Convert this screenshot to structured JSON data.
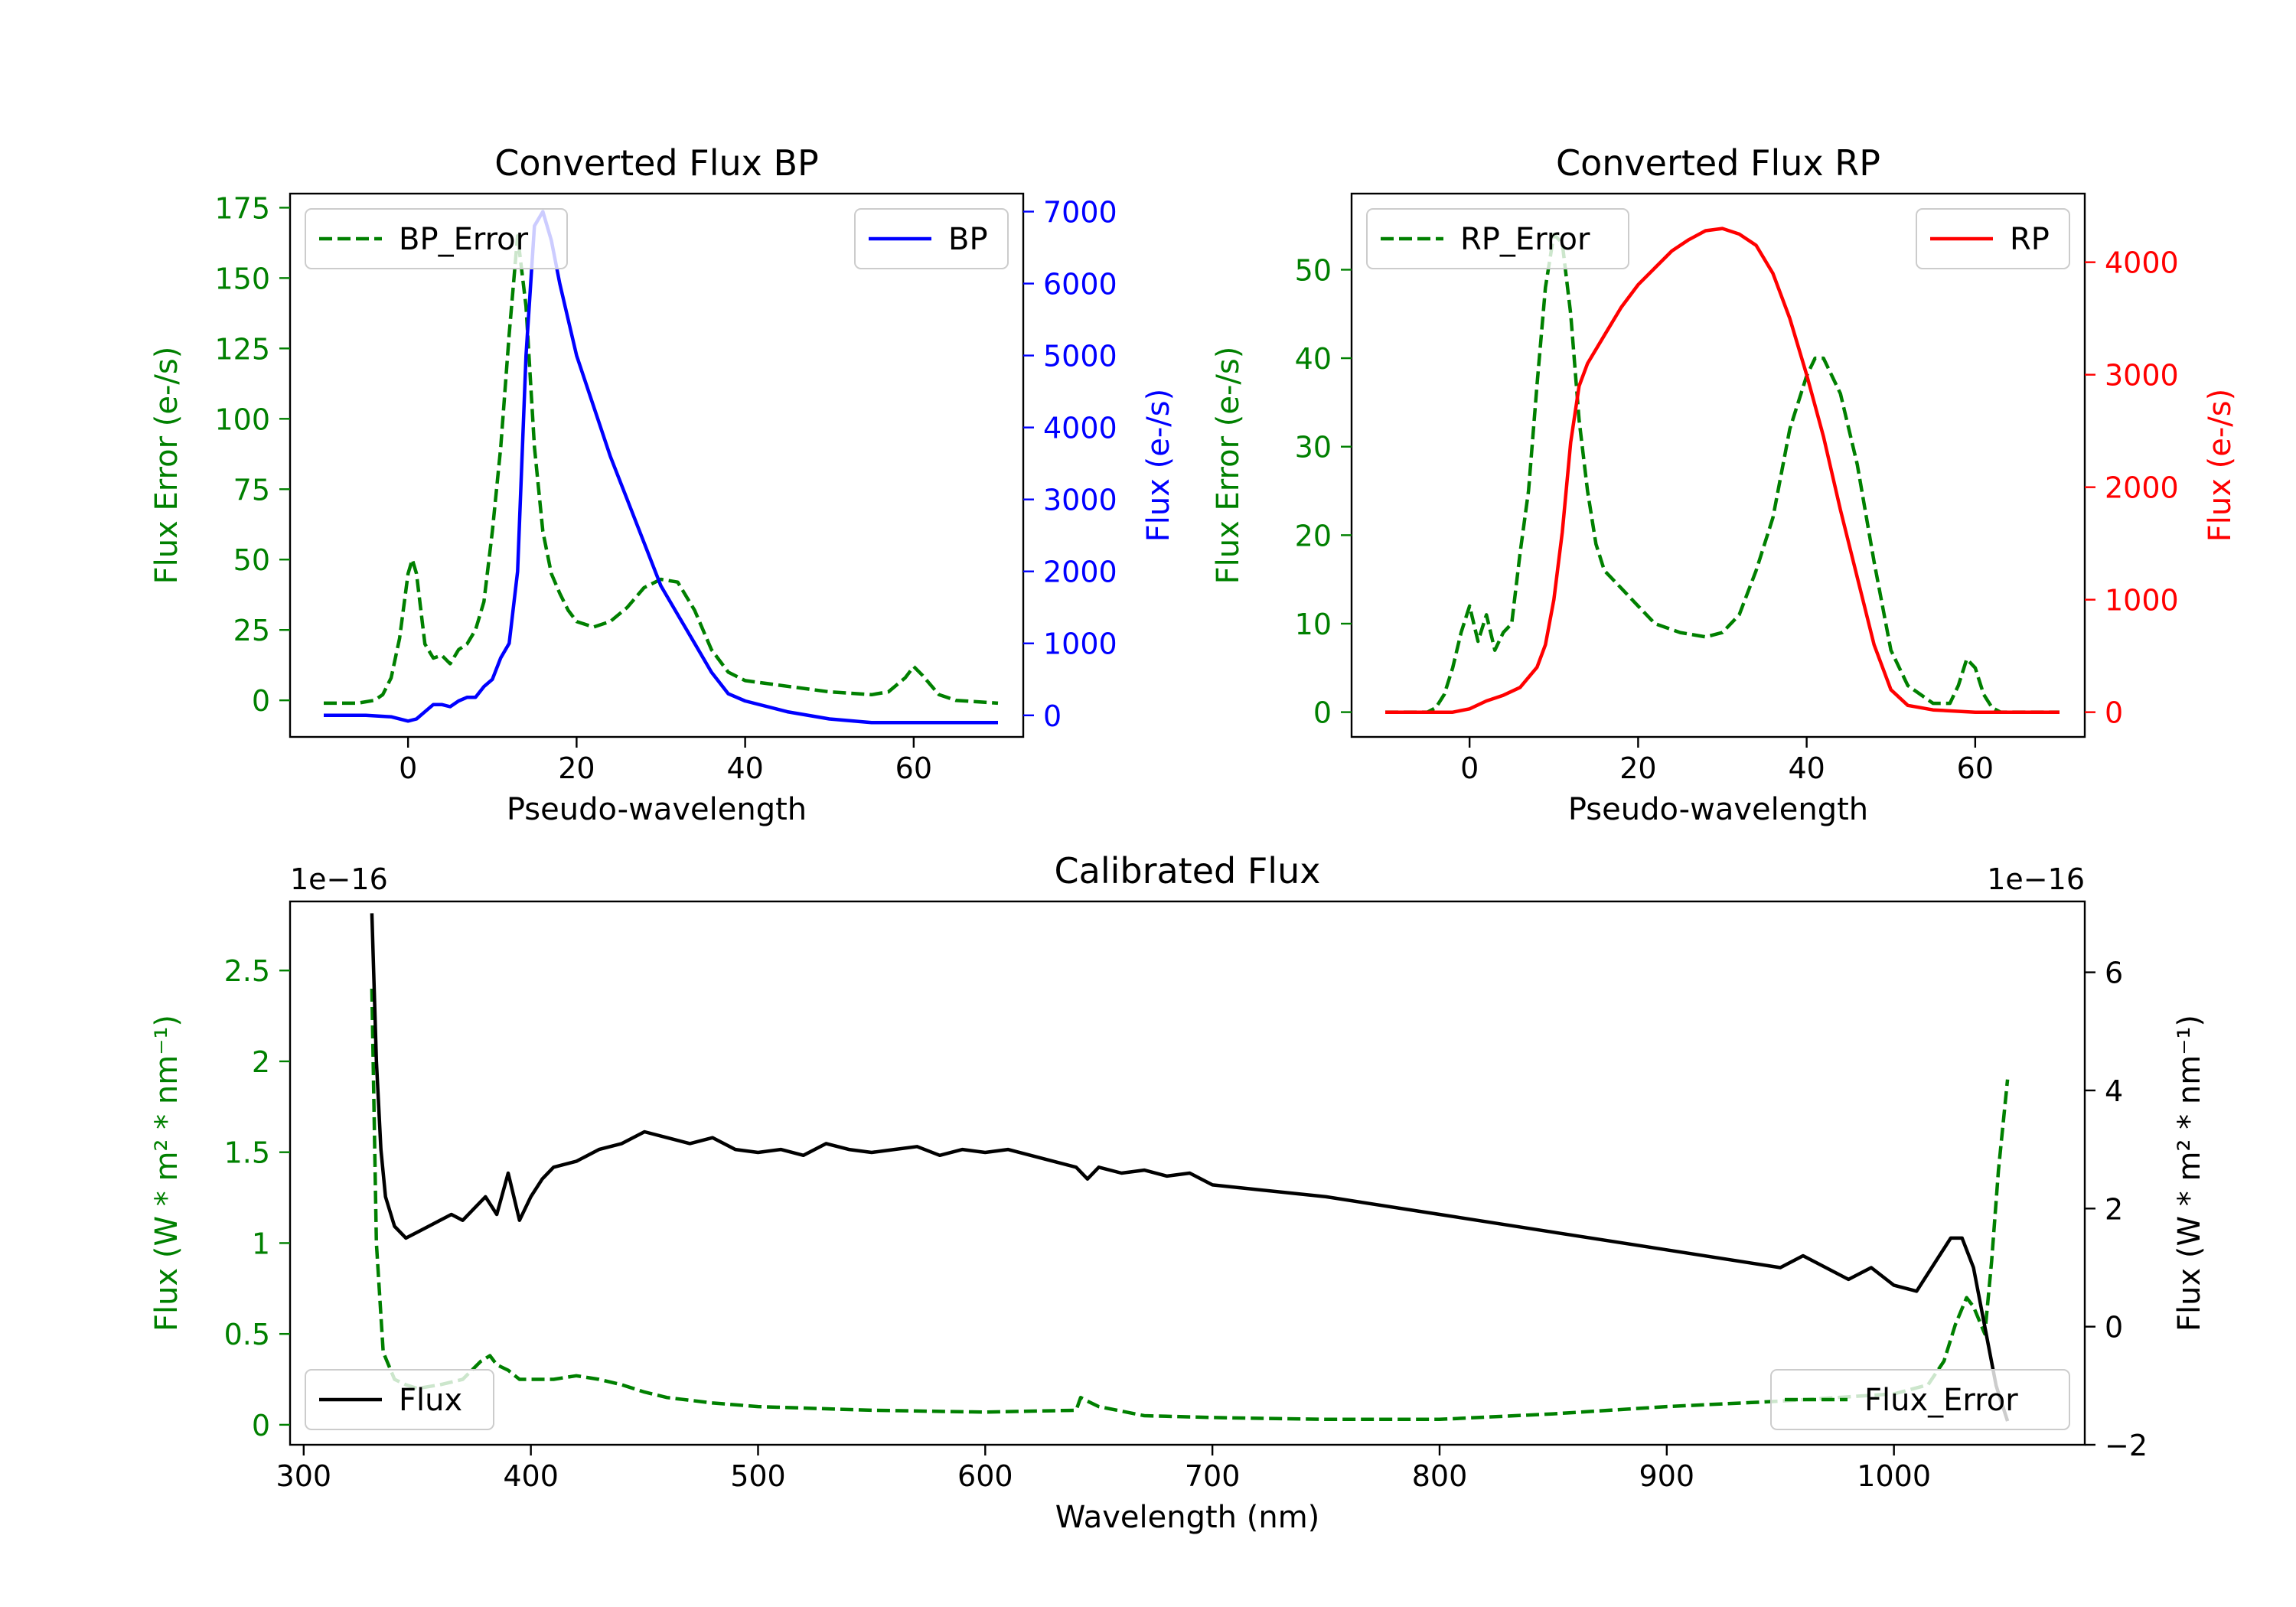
{
  "colors": {
    "error": "#008000",
    "bp": "#0000ff",
    "rp": "#ff0000",
    "flux": "#000000",
    "axis": "#000000"
  },
  "chart_data": [
    {
      "id": "bp",
      "type": "line",
      "title": "Converted Flux BP",
      "xlabel": "Pseudo-wavelength",
      "ylabel_left": "Flux Error (e-/s)",
      "ylabel_right": "Flux (e-/s)",
      "xlim": [
        -14,
        73
      ],
      "ylim_left": [
        -13,
        180
      ],
      "ylim_right": [
        -300,
        7250
      ],
      "xticks": [
        0,
        20,
        40,
        60
      ],
      "yticks_left": [
        0,
        25,
        50,
        75,
        100,
        125,
        150,
        175
      ],
      "yticks_right": [
        0,
        1000,
        2000,
        3000,
        4000,
        5000,
        6000,
        7000
      ],
      "legend_left": "BP_Error",
      "legend_right": "BP",
      "series_error": {
        "name": "BP_Error",
        "x": [
          -10,
          -6,
          -4,
          -3,
          -2,
          -1,
          0,
          0.5,
          1,
          2,
          3,
          4,
          5,
          6,
          7,
          8,
          9,
          10,
          11,
          12,
          13,
          14,
          15,
          16,
          17,
          18,
          19,
          20,
          22,
          24,
          26,
          28,
          30,
          32,
          34,
          36,
          38,
          40,
          45,
          50,
          55,
          57,
          59,
          60,
          61,
          63,
          65,
          70
        ],
        "y": [
          -1,
          -1,
          0,
          2,
          8,
          22,
          45,
          50,
          45,
          20,
          15,
          16,
          13,
          18,
          20,
          25,
          35,
          60,
          90,
          130,
          165,
          140,
          90,
          60,
          45,
          38,
          32,
          28,
          26,
          28,
          33,
          40,
          43,
          42,
          32,
          18,
          10,
          7,
          5,
          3,
          2,
          3,
          8,
          12,
          9,
          2,
          0,
          -1
        ]
      },
      "series_flux": {
        "name": "BP",
        "x": [
          -10,
          -5,
          -2,
          0,
          1,
          2,
          3,
          4,
          5,
          6,
          7,
          8,
          9,
          10,
          11,
          12,
          13,
          14,
          15,
          16,
          17,
          18,
          19,
          20,
          22,
          24,
          26,
          28,
          30,
          32,
          34,
          36,
          38,
          40,
          45,
          50,
          55,
          60,
          65,
          70
        ],
        "y": [
          0,
          0,
          -20,
          -80,
          -50,
          50,
          150,
          150,
          120,
          200,
          250,
          250,
          400,
          500,
          800,
          1000,
          2000,
          5000,
          6800,
          7000,
          6600,
          6000,
          5500,
          5000,
          4300,
          3600,
          3000,
          2400,
          1800,
          1400,
          1000,
          600,
          300,
          200,
          50,
          -50,
          -100,
          -100,
          -100,
          -100
        ]
      }
    },
    {
      "id": "rp",
      "type": "line",
      "title": "Converted Flux RP",
      "xlabel": "Pseudo-wavelength",
      "ylabel_left": "Flux Error (e-/s)",
      "ylabel_right": "Flux (e-/s)",
      "xlim": [
        -14,
        73
      ],
      "ylim_left": [
        -2.8,
        58.6
      ],
      "ylim_right": [
        -220,
        4610
      ],
      "xticks": [
        0,
        20,
        40,
        60
      ],
      "yticks_left": [
        0,
        10,
        20,
        30,
        40,
        50
      ],
      "yticks_right": [
        0,
        1000,
        2000,
        3000,
        4000
      ],
      "legend_left": "RP_Error",
      "legend_right": "RP",
      "series_error": {
        "name": "RP_Error",
        "x": [
          -10,
          -5,
          -4,
          -3,
          -2,
          -1,
          0,
          1,
          2,
          3,
          4,
          5,
          6,
          7,
          8,
          9,
          10,
          11,
          12,
          13,
          14,
          15,
          16,
          18,
          20,
          22,
          25,
          28,
          30,
          32,
          34,
          36,
          38,
          40,
          41,
          42,
          44,
          46,
          48,
          50,
          52,
          55,
          57,
          58,
          59,
          60,
          61,
          62,
          63,
          65,
          70
        ],
        "y": [
          0,
          0,
          0.5,
          2,
          5,
          9,
          12,
          8,
          11,
          7,
          9,
          10,
          18,
          25,
          37,
          48,
          54,
          53,
          45,
          33,
          25,
          19,
          16,
          14,
          12,
          10,
          9,
          8.5,
          9,
          11,
          16,
          22,
          32,
          38,
          40,
          40,
          36,
          28,
          17,
          7,
          3,
          1,
          1,
          3,
          6,
          5,
          2,
          0.5,
          0,
          0,
          0
        ]
      },
      "series_flux": {
        "name": "RP",
        "x": [
          -10,
          -5,
          -2,
          0,
          2,
          4,
          6,
          8,
          9,
          10,
          11,
          12,
          13,
          14,
          16,
          18,
          20,
          22,
          24,
          26,
          28,
          30,
          32,
          34,
          36,
          38,
          40,
          42,
          44,
          46,
          48,
          50,
          52,
          55,
          60,
          65,
          70
        ],
        "y": [
          0,
          0,
          0,
          30,
          100,
          150,
          220,
          400,
          600,
          1000,
          1600,
          2400,
          2900,
          3100,
          3350,
          3600,
          3800,
          3950,
          4100,
          4200,
          4280,
          4300,
          4250,
          4150,
          3900,
          3500,
          3000,
          2450,
          1800,
          1200,
          600,
          200,
          60,
          20,
          0,
          0,
          0
        ]
      }
    },
    {
      "id": "calibrated",
      "type": "line",
      "title": "Calibrated Flux",
      "xlabel": "Wavelength (nm)",
      "ylabel_left": "Flux (W * m² * nm⁻¹)",
      "ylabel_right": "Flux (W * m² * nm⁻¹)",
      "offset_left": "1e−16",
      "offset_right": "1e−16",
      "xlim": [
        294,
        1084
      ],
      "ylim_left": [
        -0.11,
        2.88
      ],
      "ylim_right": [
        -2.0,
        7.2
      ],
      "xticks": [
        300,
        400,
        500,
        600,
        700,
        800,
        900,
        1000
      ],
      "yticks_left": [
        0.0,
        0.5,
        1.0,
        1.5,
        2.0,
        2.5
      ],
      "yticks_right": [
        -2,
        0,
        2,
        4,
        6
      ],
      "legend_left": "Flux",
      "legend_right": "Flux_Error",
      "series_error": {
        "name": "Flux_Error",
        "x": [
          330,
          332,
          335,
          340,
          345,
          350,
          360,
          370,
          378,
          382,
          385,
          390,
          395,
          400,
          410,
          420,
          430,
          440,
          450,
          460,
          480,
          500,
          550,
          600,
          640,
          642,
          645,
          650,
          670,
          700,
          750,
          800,
          850,
          900,
          950,
          1000,
          1015,
          1022,
          1027,
          1032,
          1035,
          1040,
          1043,
          1046,
          1050
        ],
        "y": [
          2.4,
          1.0,
          0.4,
          0.25,
          0.22,
          0.2,
          0.22,
          0.25,
          0.35,
          0.38,
          0.33,
          0.3,
          0.25,
          0.25,
          0.25,
          0.27,
          0.25,
          0.22,
          0.18,
          0.15,
          0.12,
          0.1,
          0.08,
          0.07,
          0.08,
          0.15,
          0.13,
          0.1,
          0.05,
          0.04,
          0.03,
          0.03,
          0.06,
          0.1,
          0.13,
          0.17,
          0.22,
          0.35,
          0.55,
          0.7,
          0.65,
          0.5,
          0.9,
          1.4,
          1.9
        ]
      },
      "series_flux": {
        "name": "Flux",
        "x": [
          330,
          332,
          334,
          336,
          340,
          345,
          350,
          355,
          360,
          365,
          370,
          375,
          380,
          385,
          390,
          395,
          400,
          405,
          410,
          420,
          430,
          440,
          450,
          460,
          470,
          480,
          490,
          500,
          510,
          520,
          530,
          540,
          550,
          560,
          570,
          580,
          590,
          600,
          610,
          620,
          630,
          640,
          645,
          650,
          660,
          670,
          680,
          690,
          700,
          750,
          800,
          850,
          900,
          950,
          960,
          980,
          990,
          1000,
          1010,
          1020,
          1025,
          1030,
          1035,
          1040,
          1045,
          1050
        ],
        "y": [
          7.0,
          4.5,
          3.0,
          2.2,
          1.7,
          1.5,
          1.6,
          1.7,
          1.8,
          1.9,
          1.8,
          2.0,
          2.2,
          1.9,
          2.6,
          1.8,
          2.2,
          2.5,
          2.7,
          2.8,
          3.0,
          3.1,
          3.3,
          3.2,
          3.1,
          3.2,
          3.0,
          2.95,
          3.0,
          2.9,
          3.1,
          3.0,
          2.95,
          3.0,
          3.05,
          2.9,
          3.0,
          2.95,
          3.0,
          2.9,
          2.8,
          2.7,
          2.5,
          2.7,
          2.6,
          2.65,
          2.55,
          2.6,
          2.4,
          2.2,
          1.9,
          1.6,
          1.3,
          1.0,
          1.2,
          0.8,
          1.0,
          0.7,
          0.6,
          1.2,
          1.5,
          1.5,
          1.0,
          0.0,
          -1.0,
          -1.6
        ]
      }
    }
  ]
}
